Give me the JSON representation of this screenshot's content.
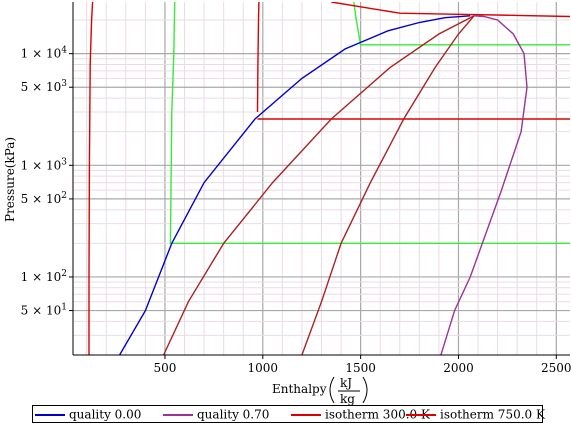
{
  "chart_data": {
    "type": "line",
    "xlabel_prefix": "Enthalpy",
    "xlabel_unit_num": "kJ",
    "xlabel_unit_den": "kg",
    "ylabel": "Pressure(kPa)",
    "x_scale": "linear",
    "y_scale": "log",
    "xlim": [
      30,
      2570
    ],
    "ylim": [
      20,
      29000
    ],
    "x_ticks": [
      500,
      1000,
      1500,
      2000,
      2500
    ],
    "x_tick_labels": [
      "500",
      "1000",
      "1500",
      "2000",
      "2500"
    ],
    "y_ticks": [
      50,
      100,
      500,
      1000,
      5000,
      10000
    ],
    "y_tick_labels": [
      {
        "mantissa": "5.",
        "exp": "1"
      },
      {
        "mantissa": "1.",
        "exp": "2"
      },
      {
        "mantissa": "5.",
        "exp": "2"
      },
      {
        "mantissa": "1.",
        "exp": "3"
      },
      {
        "mantissa": "5.",
        "exp": "3"
      },
      {
        "mantissa": "1.",
        "exp": "4"
      }
    ],
    "grid": true,
    "legend_placement": "bottom",
    "series": [
      {
        "name": "quality 0.00",
        "color": "#0000cc",
        "points": [
          [
            268,
            20
          ],
          [
            400,
            50
          ],
          [
            535,
            200
          ],
          [
            700,
            700
          ],
          [
            960,
            2600
          ],
          [
            1200,
            6000
          ],
          [
            1420,
            11000
          ],
          [
            1640,
            16000
          ],
          [
            1800,
            19000
          ],
          [
            1930,
            21000
          ],
          [
            2060,
            21800
          ]
        ]
      },
      {
        "name": "quality 0.70",
        "color": "#993399",
        "points": [
          [
            1910,
            20
          ],
          [
            1980,
            50
          ],
          [
            2060,
            100
          ],
          [
            2220,
            600
          ],
          [
            2320,
            2000
          ],
          [
            2350,
            5000
          ],
          [
            2335,
            10000
          ],
          [
            2280,
            15000
          ],
          [
            2200,
            20000
          ],
          [
            2130,
            21500
          ],
          [
            2080,
            21800
          ]
        ]
      },
      {
        "name": "isotherm 300.0 K",
        "color": "#dd0000",
        "points": [
          [
            112,
            20
          ],
          [
            112,
            100
          ],
          [
            114,
            1000
          ],
          [
            118,
            8000
          ],
          [
            125,
            20000
          ],
          [
            130,
            29000
          ]
        ]
      },
      {
        "name": "isotherm 750.0 K",
        "color": "#dd0000",
        "points": [
          [
            973,
            3000
          ],
          [
            975,
            8000
          ],
          [
            978,
            20000
          ],
          [
            980,
            29000
          ],
          [
            980,
            29000
          ]
        ]
      }
    ],
    "extra_lines": [
      {
        "color": "#33ee33",
        "points": [
          [
            550,
            29000
          ],
          [
            545,
            10000
          ],
          [
            535,
            3000
          ],
          [
            528,
            200
          ],
          [
            2570,
            200
          ]
        ]
      },
      {
        "color": "#33ee33",
        "points": [
          [
            1465,
            29000
          ],
          [
            1478,
            20000
          ],
          [
            1500,
            12000
          ],
          [
            2570,
            12000
          ]
        ]
      },
      {
        "color": "#dd0000",
        "points": [
          [
            973,
            2600
          ],
          [
            2570,
            2600
          ]
        ]
      },
      {
        "color": "#dd0000",
        "points": [
          [
            1350,
            29000
          ],
          [
            1700,
            23000
          ],
          [
            2000,
            22500
          ],
          [
            2300,
            22000
          ],
          [
            2570,
            21500
          ]
        ]
      },
      {
        "color": "#aa2222",
        "points": [
          [
            493,
            20
          ],
          [
            620,
            60
          ],
          [
            800,
            200
          ],
          [
            1050,
            700
          ],
          [
            1350,
            2600
          ],
          [
            1650,
            7500
          ],
          [
            1900,
            15000
          ],
          [
            2080,
            21800
          ]
        ]
      },
      {
        "color": "#aa2222",
        "points": [
          [
            1200,
            20
          ],
          [
            1300,
            60
          ],
          [
            1400,
            200
          ],
          [
            1550,
            700
          ],
          [
            1720,
            2600
          ],
          [
            1880,
            7500
          ],
          [
            2000,
            15000
          ],
          [
            2080,
            21800
          ]
        ]
      }
    ]
  }
}
